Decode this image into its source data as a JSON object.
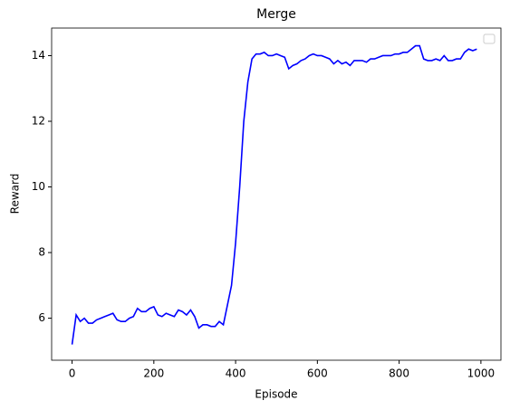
{
  "chart_data": {
    "type": "line",
    "title": "Merge",
    "xlabel": "Episode",
    "ylabel": "Reward",
    "x": [
      0,
      10,
      20,
      30,
      40,
      50,
      60,
      70,
      80,
      90,
      100,
      110,
      120,
      130,
      140,
      150,
      160,
      170,
      180,
      190,
      200,
      210,
      220,
      230,
      240,
      250,
      260,
      270,
      280,
      290,
      300,
      310,
      320,
      330,
      340,
      350,
      360,
      370,
      380,
      390,
      400,
      410,
      420,
      430,
      440,
      450,
      460,
      470,
      480,
      490,
      500,
      510,
      520,
      530,
      540,
      550,
      560,
      570,
      580,
      590,
      600,
      610,
      620,
      630,
      640,
      650,
      660,
      670,
      680,
      690,
      700,
      710,
      720,
      730,
      740,
      750,
      760,
      770,
      780,
      790,
      800,
      810,
      820,
      830,
      840,
      850,
      860,
      870,
      880,
      890,
      900,
      910,
      920,
      930,
      940,
      950,
      960,
      970,
      980,
      990
    ],
    "series": [
      {
        "color": "#0000ff",
        "values": [
          5.2,
          6.1,
          5.9,
          6.0,
          5.85,
          5.85,
          5.95,
          6.0,
          6.05,
          6.1,
          6.15,
          5.95,
          5.9,
          5.9,
          6.0,
          6.05,
          6.3,
          6.2,
          6.2,
          6.3,
          6.35,
          6.1,
          6.05,
          6.15,
          6.1,
          6.05,
          6.25,
          6.2,
          6.1,
          6.25,
          6.05,
          5.7,
          5.8,
          5.8,
          5.75,
          5.75,
          5.9,
          5.8,
          6.4,
          7.0,
          8.3,
          10.0,
          12.0,
          13.2,
          13.9,
          14.05,
          14.05,
          14.1,
          14.0,
          14.0,
          14.05,
          14.0,
          13.95,
          13.6,
          13.7,
          13.75,
          13.85,
          13.9,
          14.0,
          14.05,
          14.0,
          14.0,
          13.95,
          13.9,
          13.75,
          13.85,
          13.75,
          13.8,
          13.7,
          13.85,
          13.85,
          13.85,
          13.8,
          13.9,
          13.9,
          13.95,
          14.0,
          14.0,
          14.0,
          14.05,
          14.05,
          14.1,
          14.1,
          14.2,
          14.3,
          14.3,
          13.9,
          13.85,
          13.85,
          13.9,
          13.85,
          14.0,
          13.85,
          13.85,
          13.9,
          13.9,
          14.1,
          14.2,
          14.15,
          14.2
        ]
      }
    ],
    "xlim": [
      -50,
      1049
    ],
    "ylim": [
      4.72,
      14.84
    ],
    "xticks": [
      0,
      200,
      400,
      600,
      800,
      1000
    ],
    "yticks": [
      6,
      8,
      10,
      12,
      14
    ],
    "legend": "upper right"
  }
}
